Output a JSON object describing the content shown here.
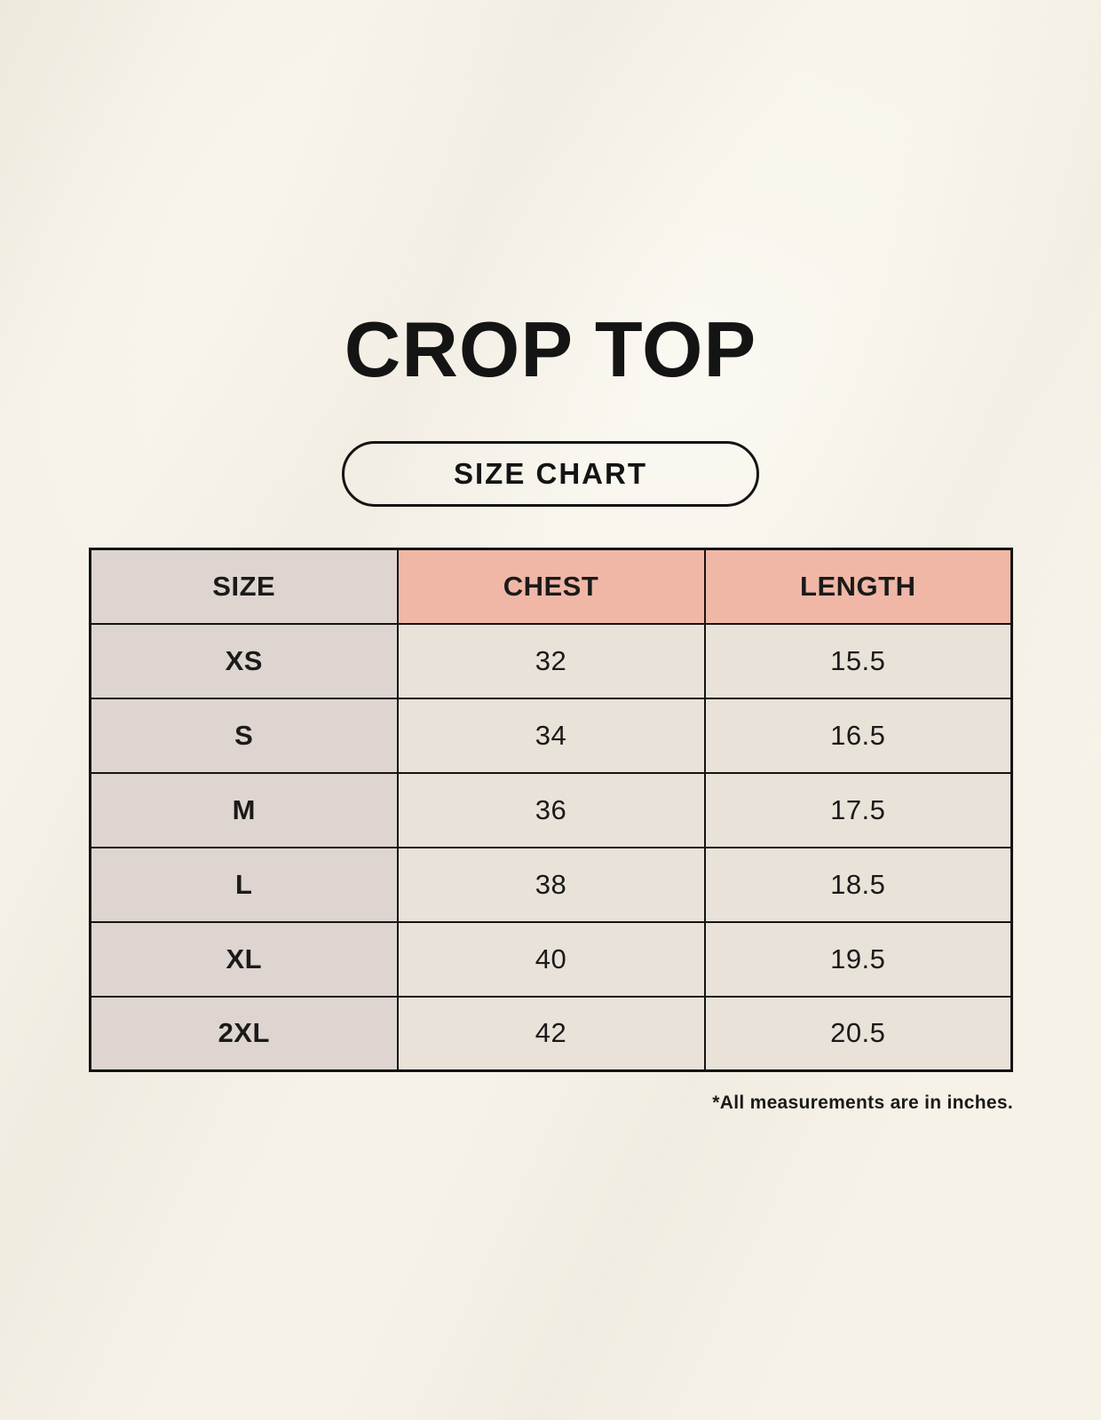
{
  "page": {
    "title": "CROP TOP",
    "size_chart_label": "SIZE CHART",
    "note": "*All measurements are in inches."
  },
  "chart_data": {
    "type": "table",
    "title": "CROP TOP",
    "subtitle": "SIZE CHART",
    "columns": [
      "SIZE",
      "CHEST",
      "LENGTH"
    ],
    "rows": [
      [
        "XS",
        "32",
        "15.5"
      ],
      [
        "S",
        "34",
        "16.5"
      ],
      [
        "M",
        "36",
        "17.5"
      ],
      [
        "L",
        "38",
        "18.5"
      ],
      [
        "XL",
        "40",
        "19.5"
      ],
      [
        "2XL",
        "42",
        "20.5"
      ]
    ],
    "units_note": "*All measurements are in inches.",
    "layout": "3 equal columns, header row + 6 data rows, all text centered"
  },
  "colors": {
    "background": "#f6f2e8",
    "size_col_bg": "#ded5d0",
    "accent_header_bg": "#f0b7a6",
    "value_cell_bg": "#e9e2d8",
    "border": "#141414",
    "text": "#161616"
  }
}
